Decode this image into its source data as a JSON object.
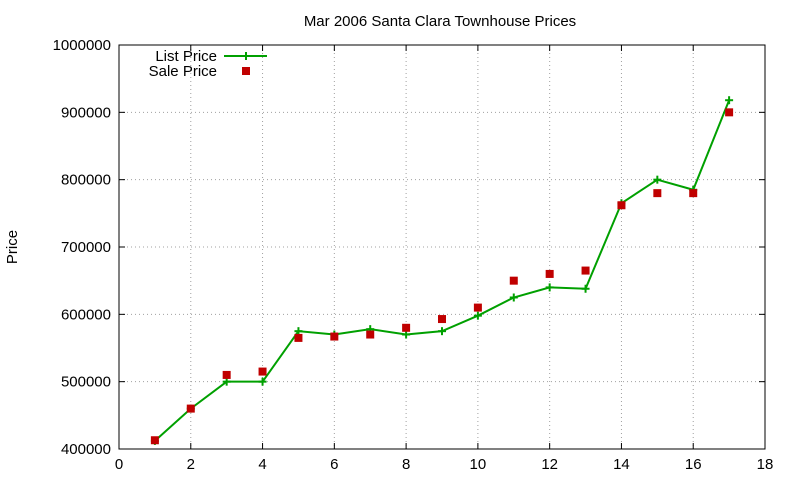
{
  "chart_data": {
    "type": "line",
    "title": "Mar 2006 Santa Clara Townhouse Prices",
    "xlabel": "",
    "ylabel": "Price",
    "xlim": [
      0,
      18
    ],
    "ylim": [
      400000,
      1000000
    ],
    "x_ticks": [
      0,
      2,
      4,
      6,
      8,
      10,
      12,
      14,
      16,
      18
    ],
    "y_ticks": [
      400000,
      500000,
      600000,
      700000,
      800000,
      900000,
      1000000
    ],
    "grid": true,
    "legend_position": "top-left",
    "series": [
      {
        "name": "List Price",
        "style": "line-plus",
        "color": "#00a000",
        "x": [
          1,
          2,
          3,
          4,
          5,
          6,
          7,
          8,
          9,
          10,
          11,
          12,
          13,
          14,
          15,
          16,
          17
        ],
        "values": [
          412000,
          460000,
          500000,
          500000,
          575000,
          570000,
          578000,
          570000,
          575000,
          598000,
          625000,
          640000,
          638000,
          765000,
          800000,
          785000,
          918000
        ]
      },
      {
        "name": "Sale Price",
        "style": "square-points",
        "color": "#c00000",
        "x": [
          1,
          2,
          3,
          4,
          5,
          6,
          7,
          8,
          9,
          10,
          11,
          12,
          13,
          14,
          15,
          16,
          17
        ],
        "values": [
          413000,
          460000,
          510000,
          515000,
          565000,
          567000,
          570000,
          580000,
          593000,
          610000,
          650000,
          660000,
          665000,
          762000,
          780000,
          780000,
          900000
        ]
      }
    ]
  }
}
